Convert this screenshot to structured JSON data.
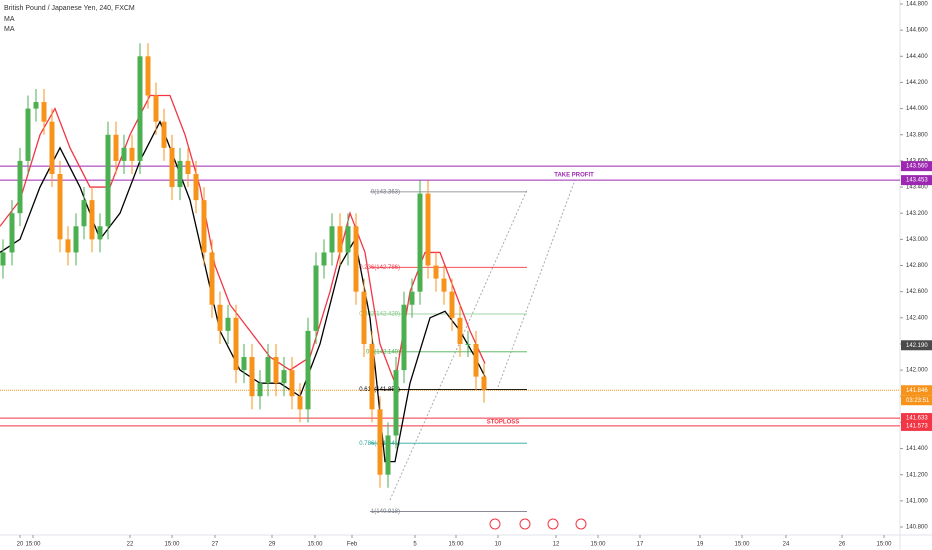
{
  "chart_data": {
    "type": "candlestick",
    "title": "British Pound / Japanese Yen, 240, FXCM",
    "indicators": [
      "MA",
      "MA"
    ],
    "up_color": "#4caf50",
    "down_color": "#f7931a",
    "x": [
      3,
      12,
      20,
      28,
      36,
      44,
      52,
      60,
      68,
      76,
      84,
      92,
      100,
      108,
      116,
      124,
      132,
      140,
      148,
      156,
      164,
      172,
      180,
      188,
      196,
      204,
      212,
      220,
      228,
      236,
      244,
      252,
      260,
      268,
      276,
      284,
      292,
      300,
      308,
      316,
      324,
      332,
      340,
      348,
      356,
      364,
      372,
      380,
      388,
      396,
      404,
      412,
      420,
      428,
      436,
      444,
      452,
      460,
      468,
      476,
      484
    ],
    "open": [
      142.8,
      142.9,
      143.2,
      143.6,
      144.0,
      144.05,
      143.9,
      143.5,
      143.0,
      142.9,
      143.1,
      143.3,
      143.0,
      143.1,
      143.8,
      143.6,
      143.7,
      143.6,
      144.4,
      144.1,
      143.9,
      143.7,
      143.4,
      143.6,
      143.5,
      143.3,
      142.9,
      142.5,
      142.3,
      142.4,
      142.0,
      142.1,
      141.8,
      141.9,
      142.1,
      141.9,
      142.0,
      141.8,
      141.7,
      142.3,
      142.8,
      142.9,
      143.1,
      142.9,
      143.1,
      142.6,
      142.2,
      141.7,
      141.2,
      141.5,
      142.0,
      142.5,
      142.6,
      143.35,
      142.8,
      142.7,
      142.6,
      142.4,
      142.2,
      142.2,
      141.95
    ],
    "high": [
      143.0,
      143.3,
      143.7,
      144.1,
      144.15,
      144.15,
      144.0,
      143.6,
      143.1,
      143.2,
      143.4,
      143.4,
      143.2,
      143.9,
      143.9,
      143.8,
      143.8,
      144.5,
      144.5,
      144.2,
      144.0,
      143.8,
      143.7,
      143.7,
      143.6,
      143.4,
      143.0,
      142.6,
      142.5,
      142.5,
      142.2,
      142.2,
      142.0,
      142.2,
      142.2,
      142.1,
      142.1,
      141.9,
      142.4,
      142.9,
      143.0,
      143.2,
      143.2,
      143.2,
      143.2,
      142.7,
      142.3,
      141.8,
      141.6,
      142.1,
      142.6,
      142.7,
      143.45,
      143.45,
      142.9,
      142.8,
      142.7,
      142.5,
      142.3,
      142.3,
      142.05
    ],
    "low": [
      142.7,
      142.8,
      143.1,
      143.5,
      143.9,
      143.8,
      143.4,
      142.9,
      142.8,
      142.8,
      143.0,
      142.9,
      142.9,
      143.0,
      143.5,
      143.5,
      143.5,
      143.5,
      144.0,
      143.8,
      143.6,
      143.3,
      143.3,
      143.4,
      143.2,
      142.8,
      142.4,
      142.2,
      142.2,
      141.9,
      141.9,
      141.7,
      141.7,
      141.8,
      141.8,
      141.8,
      141.7,
      141.6,
      141.6,
      142.2,
      142.7,
      142.8,
      142.8,
      142.8,
      142.5,
      142.1,
      141.6,
      141.1,
      141.1,
      141.4,
      141.9,
      142.4,
      142.5,
      142.7,
      142.6,
      142.5,
      142.3,
      142.1,
      142.1,
      141.85,
      141.75
    ],
    "close": [
      142.9,
      143.2,
      143.6,
      144.0,
      144.05,
      143.9,
      143.5,
      143.0,
      142.9,
      143.1,
      143.3,
      143.0,
      143.1,
      143.8,
      143.6,
      143.7,
      143.6,
      144.4,
      144.1,
      143.9,
      143.7,
      143.4,
      143.6,
      143.5,
      143.3,
      142.9,
      142.5,
      142.3,
      142.4,
      142.0,
      142.1,
      141.8,
      141.9,
      142.1,
      141.9,
      142.0,
      141.8,
      141.7,
      142.3,
      142.8,
      142.9,
      143.1,
      142.9,
      143.1,
      142.6,
      142.2,
      141.7,
      141.2,
      141.5,
      142.0,
      142.5,
      142.6,
      143.35,
      142.8,
      142.7,
      142.6,
      142.4,
      142.2,
      142.2,
      141.95,
      141.85
    ],
    "series": [
      {
        "color": "#000000",
        "x": [
          0,
          20,
          40,
          60,
          80,
          100,
          120,
          140,
          160,
          175,
          190,
          205,
          220,
          240,
          260,
          280,
          300,
          320,
          340,
          355,
          370,
          385,
          395,
          410,
          430,
          445,
          460,
          475,
          485
        ],
        "values": [
          142.9,
          143.0,
          143.4,
          143.7,
          143.4,
          143.0,
          143.2,
          143.6,
          143.9,
          143.6,
          143.3,
          142.8,
          142.3,
          142.0,
          141.9,
          141.9,
          141.8,
          142.2,
          142.8,
          143.0,
          142.4,
          141.3,
          141.3,
          141.9,
          142.4,
          142.45,
          142.3,
          142.1,
          141.95
        ]
      },
      {
        "color": "#f23645",
        "x": [
          0,
          20,
          40,
          55,
          70,
          90,
          110,
          130,
          150,
          170,
          185,
          200,
          215,
          230,
          250,
          270,
          290,
          310,
          330,
          350,
          365,
          380,
          395,
          410,
          425,
          440,
          455,
          470,
          485
        ],
        "values": [
          143.1,
          143.3,
          143.8,
          144.0,
          143.7,
          143.4,
          143.4,
          143.8,
          144.1,
          144.1,
          143.8,
          143.4,
          142.8,
          142.5,
          142.3,
          142.1,
          142.0,
          142.1,
          142.6,
          143.2,
          142.9,
          142.2,
          141.9,
          142.6,
          142.9,
          142.9,
          142.6,
          142.3,
          142.05
        ]
      }
    ],
    "fib": {
      "xlim": [
        370,
        527
      ],
      "levels": [
        {
          "value": 143.363,
          "label": "0(143.363)",
          "color": "#787b86"
        },
        {
          "value": 142.786,
          "label": "0.236(142.786)",
          "color": "#f23645"
        },
        {
          "value": 142.429,
          "label": "0.382(142.429)",
          "color": "#81c784"
        },
        {
          "value": 142.14,
          "label": "0.5(142.140)",
          "color": "#4caf50"
        },
        {
          "value": 141.852,
          "label": "0.618(141.852)",
          "color": "#000000"
        },
        {
          "value": 141.441,
          "label": "0.786(141.441)",
          "color": "#26a69a"
        },
        {
          "value": 140.918,
          "label": "1(140.918)",
          "color": "#787b86"
        }
      ]
    },
    "levels": [
      {
        "value": 143.56,
        "label": "143.560",
        "color": "#9c27b0",
        "line": true
      },
      {
        "value": 143.453,
        "label": "143.453",
        "color": "#9c27b0",
        "line": true,
        "note": "TAKE PROFIT"
      },
      {
        "value": 142.19,
        "label": "142.190",
        "color": "#4a4a4a",
        "line": false
      },
      {
        "value": 141.846,
        "label": "141.846",
        "color": "#f7931a",
        "line": true,
        "note": "03:23:51"
      },
      {
        "value": 141.633,
        "label": "141.633",
        "color": "#f23645",
        "line": true
      },
      {
        "value": 141.573,
        "label": "141.573",
        "color": "#f23645",
        "line": true,
        "note": "STOPLOSS"
      }
    ],
    "xlim": [
      0,
      900
    ],
    "ylim": [
      140.8,
      144.8
    ],
    "xticks": [
      {
        "value": 33,
        "label": "15:00"
      },
      20,
      {
        "value": 130,
        "label": "22"
      },
      {
        "value": 172,
        "label": "15:00"
      },
      {
        "value": 215,
        "label": "27"
      },
      {
        "value": 272,
        "label": "29"
      },
      {
        "value": 315,
        "label": "15:00"
      },
      {
        "value": 352,
        "label": "Feb"
      },
      {
        "value": 415,
        "label": "5"
      },
      {
        "value": 456,
        "label": "15:00"
      },
      {
        "value": 498,
        "label": "10"
      },
      {
        "value": 556,
        "label": "12"
      },
      {
        "value": 598,
        "label": "15:00"
      },
      {
        "value": 640,
        "label": "17"
      },
      {
        "value": 700,
        "label": "19"
      },
      {
        "value": 742,
        "label": "15:00"
      },
      {
        "value": 786,
        "label": "24"
      },
      {
        "value": 842,
        "label": "26"
      },
      {
        "value": 884,
        "label": "15:00"
      }
    ],
    "yticks": [
      {
        "value": 140.8,
        "label": "140.800"
      },
      {
        "value": 141.0,
        "label": "141.000"
      },
      {
        "value": 141.2,
        "label": "141.200"
      },
      {
        "value": 141.4,
        "label": "141.400"
      },
      {
        "value": 141.6,
        "label": "141.600"
      },
      {
        "value": 141.8,
        "label": "141.800"
      },
      {
        "value": 142.0,
        "label": "142.000"
      },
      {
        "value": 142.2,
        "label": "142.200"
      },
      {
        "value": 142.4,
        "label": "142.400"
      },
      {
        "value": 142.6,
        "label": "142.600"
      },
      {
        "value": 142.8,
        "label": "142.800"
      },
      {
        "value": 143.0,
        "label": "143.000"
      },
      {
        "value": 143.2,
        "label": "143.200"
      },
      {
        "value": 143.4,
        "label": "143.400"
      },
      {
        "value": 143.6,
        "label": "143.600"
      },
      {
        "value": 143.8,
        "label": "143.800"
      },
      {
        "value": 144.0,
        "label": "144.000"
      },
      {
        "value": 144.2,
        "label": "144.200"
      },
      {
        "value": 144.4,
        "label": "144.400"
      },
      {
        "value": 144.6,
        "label": "144.600"
      },
      {
        "value": 144.8,
        "label": "144.800"
      }
    ]
  }
}
